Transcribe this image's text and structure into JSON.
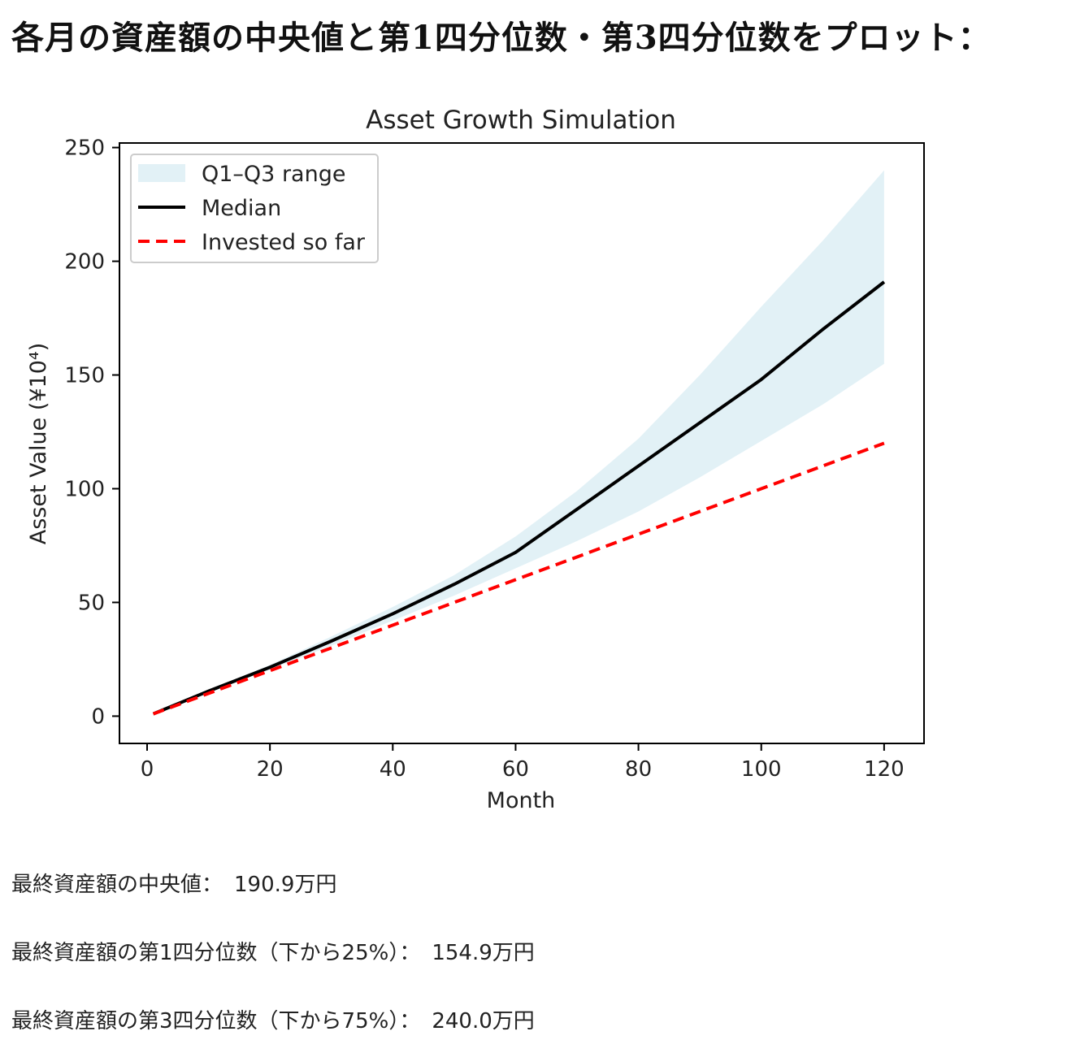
{
  "page": {
    "heading": "各月の資産額の中央値と第1四分位数・第3四分位数をプロット："
  },
  "results": [
    {
      "label": "最終資産額の中央値：",
      "value": "190.9万円"
    },
    {
      "label": "最終資産額の第1四分位数（下から25%）：",
      "value": "154.9万円"
    },
    {
      "label": "最終資産額の第3四分位数（下から75%）：",
      "value": "240.0万円"
    }
  ],
  "chart_data": {
    "type": "area",
    "title": "Asset Growth Simulation",
    "xlabel": "Month",
    "ylabel": "Asset Value (¥10⁴)",
    "xlim": [
      -4.5,
      126.5
    ],
    "ylim": [
      -12,
      252
    ],
    "xticks": [
      0,
      20,
      40,
      60,
      80,
      100,
      120
    ],
    "yticks": [
      0,
      50,
      100,
      150,
      200,
      250
    ],
    "legend_position": "upper-left",
    "grid": false,
    "colors": {
      "band": "#add8e6",
      "median": "#000000",
      "invested": "#ff0000"
    },
    "series": [
      {
        "name": "Q1–Q3 range",
        "kind": "band",
        "x": [
          1,
          10,
          20,
          30,
          40,
          50,
          60,
          70,
          80,
          90,
          100,
          110,
          120
        ],
        "lower": [
          1,
          10.5,
          20.5,
          31,
          42,
          53,
          65,
          77,
          90,
          105,
          121,
          137,
          154.9
        ],
        "upper": [
          1,
          11.5,
          22.5,
          35,
          48,
          62,
          79,
          99,
          122,
          150,
          180,
          209,
          240
        ]
      },
      {
        "name": "Median",
        "kind": "line",
        "x": [
          1,
          10,
          20,
          30,
          40,
          50,
          60,
          70,
          80,
          90,
          100,
          110,
          120
        ],
        "y": [
          1,
          11,
          21.5,
          33,
          45,
          58,
          72,
          91,
          110,
          129,
          148,
          170,
          190.9
        ]
      },
      {
        "name": "Invested so far",
        "kind": "dashed-line",
        "x": [
          1,
          120
        ],
        "y": [
          1,
          120
        ]
      }
    ]
  }
}
